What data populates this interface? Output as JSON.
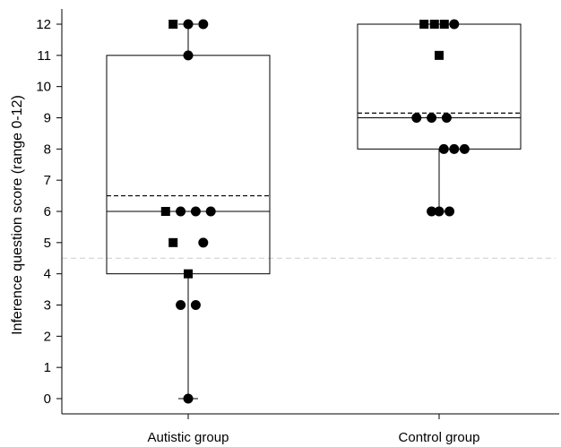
{
  "chart_data": {
    "type": "box",
    "ylabel": "Inference question score (range 0-12)",
    "xlabel": "",
    "categories": [
      "Autistic group",
      "Control group"
    ],
    "ylim": [
      0,
      12
    ],
    "yticks": [
      "0",
      "1",
      "2",
      "3",
      "4",
      "5",
      "6",
      "7",
      "8",
      "9",
      "10",
      "11",
      "12"
    ],
    "reference_line": {
      "value": 4.5,
      "style": "dashed",
      "color": "#cccccc"
    },
    "groups": [
      {
        "category": "Autistic group",
        "min": 0,
        "q1": 4,
        "median": 6,
        "mean": 6.5,
        "q3": 11,
        "max": 12,
        "points": [
          {
            "y": 12,
            "shape": "square",
            "offset": -1.6
          },
          {
            "y": 12,
            "shape": "circle",
            "offset": 0
          },
          {
            "y": 12,
            "shape": "circle",
            "offset": 1.6
          },
          {
            "y": 11,
            "shape": "circle",
            "offset": 0
          },
          {
            "y": 6,
            "shape": "square",
            "offset": -2.4
          },
          {
            "y": 6,
            "shape": "circle",
            "offset": -0.8
          },
          {
            "y": 6,
            "shape": "circle",
            "offset": 0.8
          },
          {
            "y": 6,
            "shape": "circle",
            "offset": 2.4
          },
          {
            "y": 5,
            "shape": "square",
            "offset": -1.6
          },
          {
            "y": 5,
            "shape": "circle",
            "offset": 1.6
          },
          {
            "y": 4,
            "shape": "square",
            "offset": 0
          },
          {
            "y": 3,
            "shape": "circle",
            "offset": -0.8
          },
          {
            "y": 3,
            "shape": "circle",
            "offset": 0.8
          },
          {
            "y": 0,
            "shape": "circle",
            "offset": 0
          }
        ]
      },
      {
        "category": "Control group",
        "min": 6,
        "q1": 8,
        "median": 9,
        "mean": 9.15,
        "q3": 12,
        "max": 12,
        "points": [
          {
            "y": 12,
            "shape": "square",
            "offset": -1.6
          },
          {
            "y": 12,
            "shape": "square",
            "offset": -0.5
          },
          {
            "y": 12,
            "shape": "square",
            "offset": 0.55
          },
          {
            "y": 12,
            "shape": "circle",
            "offset": 1.6
          },
          {
            "y": 11,
            "shape": "square",
            "offset": 0
          },
          {
            "y": 9,
            "shape": "circle",
            "offset": -2.4
          },
          {
            "y": 9,
            "shape": "circle",
            "offset": -0.8
          },
          {
            "y": 9,
            "shape": "circle",
            "offset": 0.8
          },
          {
            "y": 8,
            "shape": "circle",
            "offset": 0.5
          },
          {
            "y": 8,
            "shape": "circle",
            "offset": 1.6
          },
          {
            "y": 8,
            "shape": "circle",
            "offset": 2.7
          },
          {
            "y": 6,
            "shape": "circle",
            "offset": -0.8
          },
          {
            "y": 6,
            "shape": "circle",
            "offset": 0
          },
          {
            "y": 6,
            "shape": "circle",
            "offset": 1.1
          }
        ]
      }
    ]
  }
}
